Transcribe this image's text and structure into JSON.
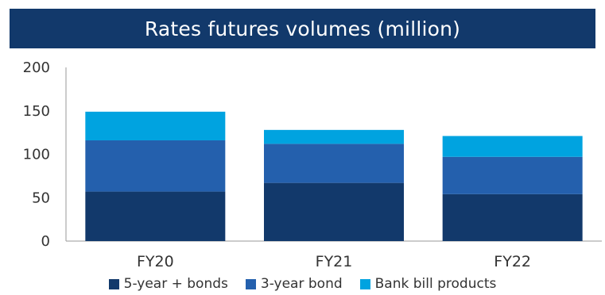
{
  "chart_data": {
    "type": "bar",
    "stacked": true,
    "title": "Rates futures volumes (million)",
    "categories": [
      "FY20",
      "FY21",
      "FY22"
    ],
    "series": [
      {
        "name": "5-year + bonds",
        "color": "#12396b",
        "values": [
          57,
          67,
          54
        ]
      },
      {
        "name": "3-year bond",
        "color": "#2460ad",
        "values": [
          59,
          45,
          43
        ]
      },
      {
        "name": "Bank bill products",
        "color": "#00a3e0",
        "values": [
          33,
          16,
          24
        ]
      }
    ],
    "ylim": [
      0,
      200
    ],
    "yticks": [
      "0",
      "50",
      "100",
      "150",
      "200"
    ],
    "grid": false,
    "legend_position": "bottom"
  }
}
